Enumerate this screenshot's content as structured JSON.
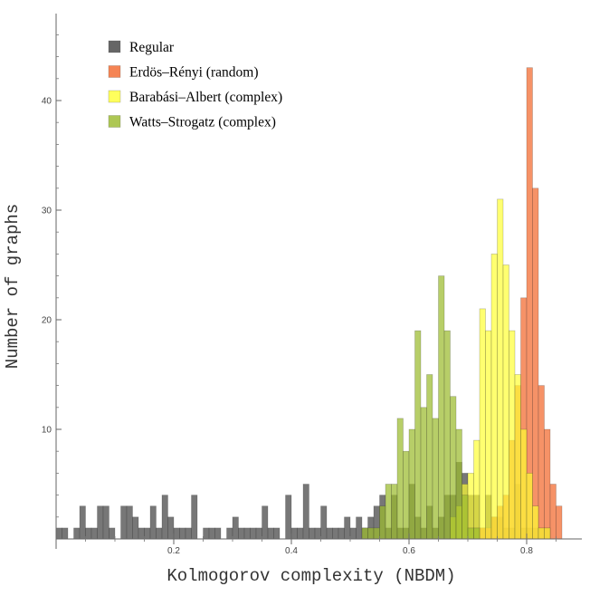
{
  "chart_data": {
    "type": "bar",
    "subtype": "overlaid histogram",
    "xlabel": "Kolmogorov complexity (NBDM)",
    "ylabel": "Number of graphs",
    "xlim": [
      0.0,
      0.88
    ],
    "ylim": [
      0,
      46
    ],
    "bin_width": 0.01,
    "x_ticks": [
      0.2,
      0.4,
      0.6,
      0.8
    ],
    "x_tick_labels": [
      "0.2",
      "0.4",
      "0.6",
      "0.8"
    ],
    "y_ticks": [
      10,
      20,
      30,
      40
    ],
    "y_tick_labels": [
      "10",
      "20",
      "30",
      "40"
    ],
    "legend_position": "top-left",
    "series": [
      {
        "name": "Regular",
        "color": "#555555",
        "opacity": 0.8,
        "bin_start": 0.0,
        "values": [
          1,
          1,
          0,
          1,
          3,
          1,
          1,
          3,
          3,
          1,
          0,
          3,
          3,
          2,
          1,
          1,
          3,
          1,
          4,
          2,
          1,
          1,
          1,
          4,
          0,
          1,
          1,
          1,
          0,
          1,
          2,
          1,
          1,
          1,
          1,
          3,
          1,
          1,
          0,
          4,
          1,
          1,
          5,
          1,
          1,
          3,
          1,
          1,
          1,
          2,
          1,
          2,
          1,
          2,
          3,
          4,
          1,
          4,
          1,
          1,
          5,
          2,
          1,
          3,
          1,
          2,
          4,
          4,
          7,
          6,
          4,
          4,
          1,
          4,
          2,
          2,
          1,
          1,
          5,
          1,
          1,
          1,
          1,
          1
        ]
      },
      {
        "name": "Erdös–Rényi (random)",
        "color": "#F47A45",
        "opacity": 0.82,
        "bin_start": 0.72,
        "values": [
          1,
          1,
          2,
          3,
          4,
          9,
          14,
          22,
          43,
          32,
          14,
          10,
          5,
          3
        ]
      },
      {
        "name": "Barabási–Albert (complex)",
        "color": "#FFFF33",
        "opacity": 0.7,
        "bin_start": 0.67,
        "values": [
          2,
          3,
          5,
          6,
          9,
          21,
          19,
          26,
          31,
          25,
          19,
          15,
          10,
          6,
          3,
          1,
          1
        ]
      },
      {
        "name": "Watts–Strogatz (complex)",
        "color": "#9BBB2E",
        "opacity": 0.72,
        "bin_start": 0.52,
        "values": [
          1,
          1,
          1,
          3,
          5,
          5,
          11,
          8,
          10,
          19,
          12,
          15,
          11,
          24,
          19,
          13,
          10,
          4,
          1,
          1
        ]
      }
    ]
  }
}
